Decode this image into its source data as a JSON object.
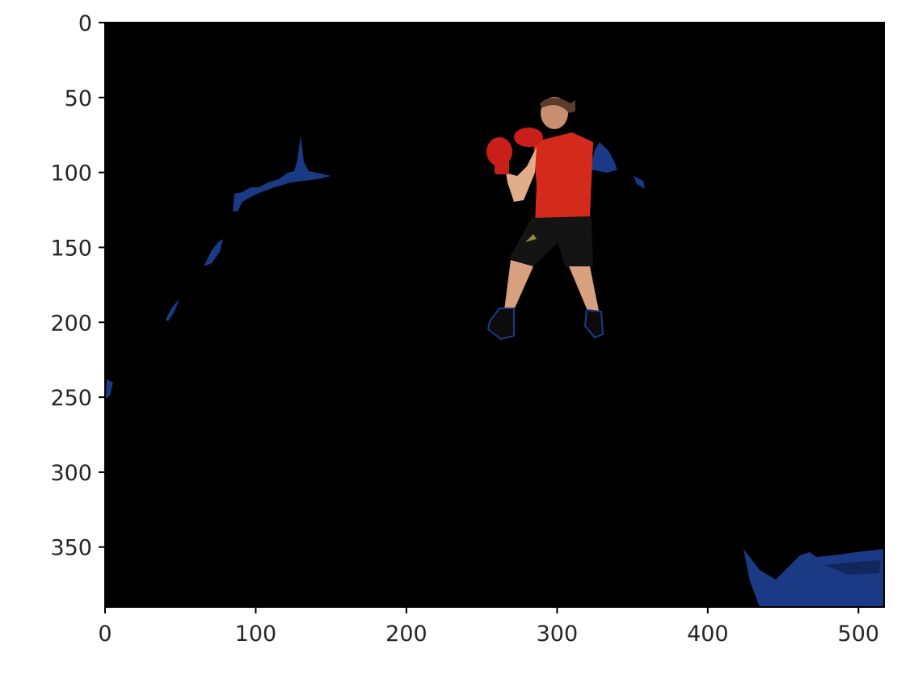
{
  "figure": {
    "kind": "image-plot",
    "description_axes": "matplotlib imshow of a background-subtracted video frame",
    "image_extent": {
      "x": [
        0,
        517
      ],
      "y": [
        0,
        390
      ]
    },
    "x_axis": {
      "ticks": [
        0,
        100,
        200,
        300,
        400,
        500
      ],
      "tick_labels": [
        "0",
        "100",
        "200",
        "300",
        "400",
        "500"
      ]
    },
    "y_axis": {
      "inverted": true,
      "ticks": [
        0,
        50,
        100,
        150,
        200,
        250,
        300,
        350
      ],
      "tick_labels": [
        "0",
        "50",
        "100",
        "150",
        "200",
        "250",
        "300",
        "350"
      ]
    },
    "colors": {
      "background": "#000000",
      "noise_blue": "#1b3a86",
      "shirt_red": "#d42a1c",
      "glove_red": "#c81f1a",
      "skin": "#d9a07a",
      "shorts": "#101010"
    }
  }
}
